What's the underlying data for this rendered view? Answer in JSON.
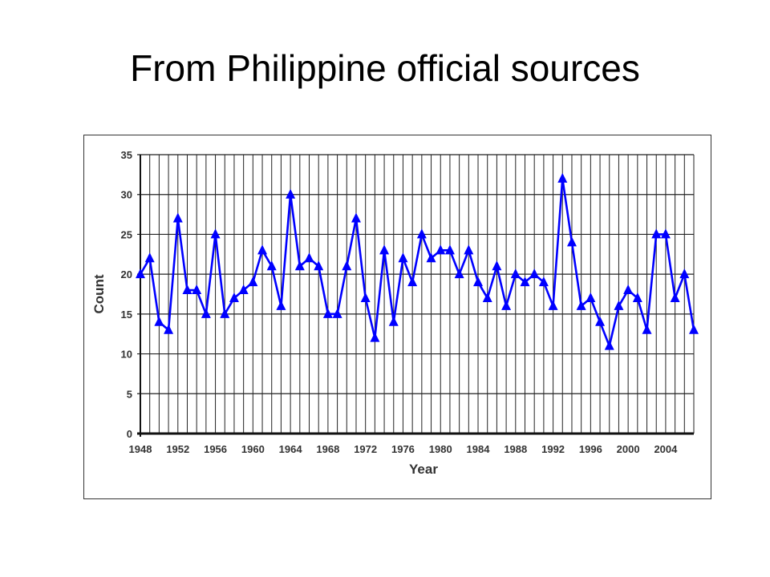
{
  "slide": {
    "title": "From Philippine official sources"
  },
  "chart_data": {
    "type": "line",
    "title": "",
    "xlabel": "Year",
    "ylabel": "Count",
    "ylim": [
      0,
      35
    ],
    "xlim": [
      1948,
      2007
    ],
    "y_ticks": [
      0,
      5,
      10,
      15,
      20,
      25,
      30,
      35
    ],
    "x_tick_labels": [
      "1948",
      "1952",
      "1956",
      "1960",
      "1964",
      "1968",
      "1972",
      "1976",
      "1980",
      "1984",
      "1988",
      "1992",
      "1996",
      "2000",
      "2004"
    ],
    "grid": true,
    "legend": "none",
    "series_color": "#0000ff",
    "grid_color": "#222222",
    "marker": "triangle",
    "series": [
      {
        "x": [
          1948,
          1949,
          1950,
          1951,
          1952,
          1953,
          1954,
          1955,
          1956,
          1957,
          1958,
          1959,
          1960,
          1961,
          1962,
          1963,
          1964,
          1965,
          1966,
          1967,
          1968,
          1969,
          1970,
          1971,
          1972,
          1973,
          1974,
          1975,
          1976,
          1977,
          1978,
          1979,
          1980,
          1981,
          1982,
          1983,
          1984,
          1985,
          1986,
          1987,
          1988,
          1989,
          1990,
          1991,
          1992,
          1993,
          1994,
          1995,
          1996,
          1997,
          1998,
          1999,
          2000,
          2001,
          2002,
          2003,
          2004,
          2005,
          2006,
          2007
        ],
        "y": [
          20,
          22,
          14,
          13,
          27,
          18,
          18,
          15,
          25,
          15,
          17,
          18,
          19,
          23,
          21,
          16,
          30,
          21,
          22,
          21,
          15,
          15,
          21,
          27,
          17,
          12,
          23,
          14,
          22,
          19,
          25,
          22,
          23,
          23,
          20,
          23,
          19,
          17,
          21,
          16,
          20,
          19,
          20,
          19,
          16,
          32,
          24,
          16,
          17,
          14,
          11,
          16,
          18,
          17,
          13,
          25,
          25,
          17,
          20,
          13
        ]
      }
    ]
  }
}
